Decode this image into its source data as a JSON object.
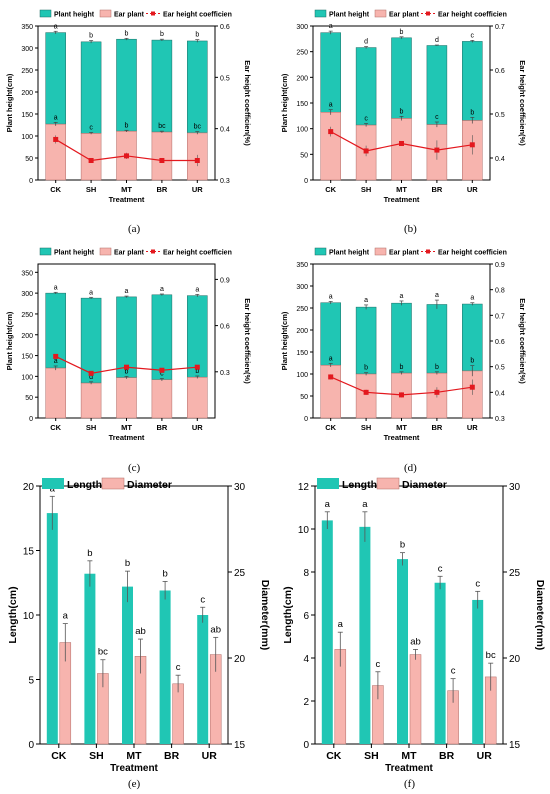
{
  "colors": {
    "plant": "#20c6b4",
    "ear": "#f7b4ae",
    "coef": "#e3181e",
    "length": "#20c6b4",
    "diameter": "#f7b4ae"
  },
  "captions": [
    "(a)",
    "(b)",
    "(c)",
    "(d)",
    "(e)",
    "(f)"
  ],
  "chart_data": [
    {
      "type": "bar",
      "categories": [
        "CK",
        "SH",
        "MT",
        "BR",
        "UR"
      ],
      "xlabel": "Treatment",
      "ylabel": "Plant height(cm)",
      "y2label": "Ear height coefficien(%)",
      "ylim": [
        0,
        350
      ],
      "yticks": [
        0,
        50,
        100,
        150,
        200,
        250,
        300,
        350
      ],
      "y2lim": [
        0.3,
        0.6
      ],
      "y2ticks": [
        "0.3",
        "0.4",
        "0.5",
        "0.6"
      ],
      "legend": [
        "Plant height",
        "Ear plant",
        "Ear height coefficien"
      ],
      "series": [
        {
          "name": "Plant height",
          "values": [
            335,
            314,
            320,
            318,
            316
          ],
          "err": [
            3,
            3,
            2,
            2,
            3
          ],
          "letters": [
            "a",
            "b",
            "b",
            "b",
            "b"
          ]
        },
        {
          "name": "Ear plant",
          "values": [
            127,
            106,
            111,
            109,
            107
          ],
          "err": [
            4,
            2,
            2,
            2,
            3
          ],
          "letters": [
            "a",
            "c",
            "b",
            "bc",
            "bc"
          ]
        },
        {
          "name": "Ear height coefficien",
          "values": [
            0.379,
            0.338,
            0.347,
            0.338,
            0.338
          ],
          "err": [
            0.008,
            0.004,
            0.006,
            0.004,
            0.011
          ],
          "letters": [
            "a",
            "b",
            "b",
            "b",
            "b"
          ]
        }
      ]
    },
    {
      "type": "bar",
      "categories": [
        "CK",
        "SH",
        "MT",
        "BR",
        "UR"
      ],
      "xlabel": "Treatment",
      "ylabel": "Plant height(cm)",
      "y2label": "Ear height coefficien(%)",
      "ylim": [
        0,
        300
      ],
      "yticks": [
        0,
        50,
        100,
        150,
        200,
        250,
        300
      ],
      "y2lim": [
        0.35,
        0.7
      ],
      "y2ticks": [
        "0.4",
        "0.5",
        "0.6",
        "0.7"
      ],
      "legend": [
        "Plant height",
        "Ear plant",
        "Ear height coefficien"
      ],
      "series": [
        {
          "name": "Plant height",
          "values": [
            287,
            258,
            277,
            262,
            270
          ],
          "err": [
            3,
            2,
            2,
            1,
            2
          ],
          "letters": [
            "a",
            "d",
            "b",
            "d",
            "c"
          ]
        },
        {
          "name": "Ear plant",
          "values": [
            132,
            107,
            120,
            108,
            116
          ],
          "err": [
            5,
            3,
            4,
            5,
            6
          ],
          "letters": [
            "a",
            "c",
            "b",
            "c",
            "b"
          ]
        },
        {
          "name": "Ear height coefficien",
          "values": [
            0.46,
            0.416,
            0.433,
            0.418,
            0.43
          ],
          "err": [
            0.011,
            0.012,
            0.005,
            0.022,
            0.022
          ],
          "letters": [
            "a",
            "b",
            "b",
            "b",
            "b"
          ]
        }
      ]
    },
    {
      "type": "bar",
      "categories": [
        "CK",
        "SH",
        "MT",
        "BR",
        "UR"
      ],
      "xlabel": "Treatment",
      "ylabel": "Plant height(cm)",
      "y2label": "Ear height coefficien(%)",
      "ylim": [
        0,
        370
      ],
      "yticks": [
        0,
        50,
        100,
        150,
        200,
        250,
        300,
        350
      ],
      "y2lim": [
        0,
        1.0
      ],
      "y2ticks": [
        "0.3",
        "0.6",
        "0.9"
      ],
      "legend": [
        "Plant height",
        "Ear plant",
        "Ear height coefficien"
      ],
      "series": [
        {
          "name": "Plant height",
          "values": [
            300,
            288,
            291,
            296,
            294
          ],
          "err": [
            2,
            2,
            2,
            2,
            3
          ],
          "letters": [
            "a",
            "a",
            "a",
            "a",
            "a"
          ]
        },
        {
          "name": "Ear plant",
          "values": [
            120,
            84,
            97,
            92,
            98
          ],
          "err": [
            5,
            3,
            3,
            3,
            3
          ],
          "letters": [
            "a",
            "d",
            "b",
            "c",
            "b"
          ]
        },
        {
          "name": "Ear height coefficien",
          "values": [
            0.4,
            0.29,
            0.33,
            0.31,
            0.33
          ],
          "err": [
            0.01,
            0.01,
            0.01,
            0.01,
            0.01
          ],
          "letters": [
            "a",
            "c",
            "b",
            "bc",
            "b"
          ]
        }
      ]
    },
    {
      "type": "bar",
      "categories": [
        "CK",
        "SH",
        "MT",
        "BR",
        "UR"
      ],
      "xlabel": "Treatment",
      "ylabel": "Plant height(cm)",
      "y2label": "Ear height coefficien(%)",
      "ylim": [
        0,
        350
      ],
      "yticks": [
        0,
        50,
        100,
        150,
        200,
        250,
        300,
        350
      ],
      "y2lim": [
        0.3,
        0.9
      ],
      "y2ticks": [
        "0.3",
        "0.4",
        "0.5",
        "0.6",
        "0.7",
        "0.8",
        "0.9"
      ],
      "legend": [
        "Plant height",
        "Ear plant",
        "Ear height coefficien"
      ],
      "series": [
        {
          "name": "Plant height",
          "values": [
            262,
            252,
            261,
            258,
            259
          ],
          "err": [
            3,
            5,
            5,
            10,
            3
          ],
          "letters": [
            "a",
            "a",
            "a",
            "a",
            "a"
          ]
        },
        {
          "name": "Ear plant",
          "values": [
            120,
            100,
            102,
            102,
            107
          ],
          "err": [
            4,
            3,
            3,
            3,
            12
          ],
          "letters": [
            "a",
            "b",
            "b",
            "b",
            "b"
          ]
        },
        {
          "name": "Ear height coefficien",
          "values": [
            0.46,
            0.4,
            0.39,
            0.4,
            0.42
          ],
          "err": [
            0.01,
            0.01,
            0.01,
            0.02,
            0.03
          ],
          "letters": [
            "a",
            "b",
            "b",
            "b",
            "b"
          ]
        }
      ]
    },
    {
      "type": "bar",
      "categories": [
        "CK",
        "SH",
        "MT",
        "BR",
        "UR"
      ],
      "xlabel": "Treatment",
      "ylabel": "Length(cm)",
      "y2label": "Diameter(mm)",
      "ylim": [
        0,
        20
      ],
      "yticks": [
        0,
        5,
        10,
        15,
        20
      ],
      "y2lim": [
        15,
        30
      ],
      "y2ticks": [
        15,
        20,
        25,
        30
      ],
      "legend": [
        "Length",
        "Diameter"
      ],
      "series": [
        {
          "name": "Length",
          "values": [
            17.9,
            13.2,
            12.2,
            11.9,
            10.0
          ],
          "err": [
            1.3,
            1.0,
            1.2,
            0.7,
            0.6
          ],
          "letters": [
            "a",
            "b",
            "b",
            "b",
            "c"
          ]
        },
        {
          "name": "Diameter",
          "values": [
            20.9,
            19.1,
            20.1,
            18.5,
            20.2
          ],
          "err": [
            1.1,
            0.8,
            1.0,
            0.5,
            1.0
          ],
          "letters": [
            "a",
            "bc",
            "ab",
            "c",
            "ab"
          ]
        }
      ]
    },
    {
      "type": "bar",
      "categories": [
        "CK",
        "SH",
        "MT",
        "BR",
        "UR"
      ],
      "xlabel": "Treatment",
      "ylabel": "Length(cm)",
      "y2label": "Diameter(mm)",
      "ylim": [
        0,
        12
      ],
      "yticks": [
        0,
        2,
        4,
        6,
        8,
        10,
        12
      ],
      "y2lim": [
        15,
        30
      ],
      "y2ticks": [
        15,
        20,
        25,
        30
      ],
      "legend": [
        "Length",
        "Diameter"
      ],
      "series": [
        {
          "name": "Length",
          "values": [
            10.4,
            10.1,
            8.6,
            7.5,
            6.7
          ],
          "err": [
            0.4,
            0.7,
            0.3,
            0.3,
            0.4
          ],
          "letters": [
            "a",
            "a",
            "b",
            "c",
            "c"
          ]
        },
        {
          "name": "Diameter",
          "values": [
            20.5,
            18.4,
            20.2,
            18.1,
            18.9
          ],
          "err": [
            1.0,
            0.8,
            0.3,
            0.7,
            0.8
          ],
          "letters": [
            "a",
            "c",
            "ab",
            "c",
            "bc"
          ]
        }
      ]
    }
  ]
}
